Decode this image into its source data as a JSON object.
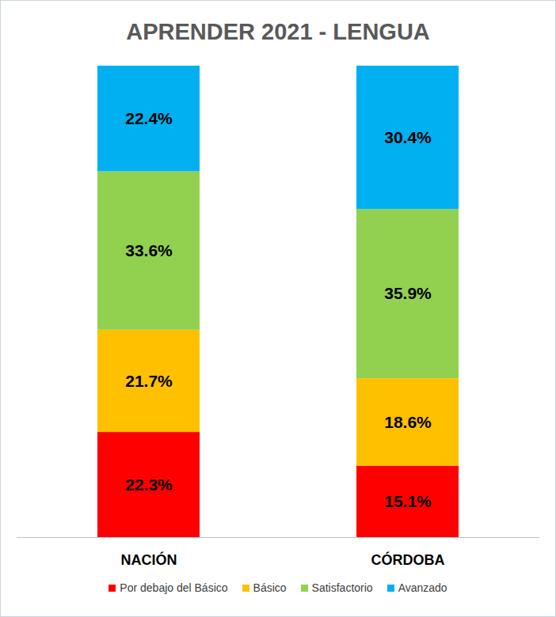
{
  "chart_data": {
    "type": "bar",
    "title": "APRENDER 2021 - LENGUA",
    "categories": [
      "NACIÓN",
      "CÓRDOBA"
    ],
    "stacked": true,
    "data_labels": true,
    "tick_labels": "x",
    "legend": "bottom",
    "ylim": [
      0,
      100
    ],
    "series": [
      {
        "name": "Por debajo del Básico",
        "color": "#ff0000",
        "values": [
          22.3,
          15.1
        ],
        "value_labels": [
          "22.3%",
          "15.1%"
        ]
      },
      {
        "name": "Básico",
        "color": "#ffc000",
        "values": [
          21.7,
          18.6
        ],
        "value_labels": [
          "21.7%",
          "18.6%"
        ]
      },
      {
        "name": "Satisfactorio",
        "color": "#92d050",
        "values": [
          33.6,
          35.9
        ],
        "value_labels": [
          "33.6%",
          "35.9%"
        ]
      },
      {
        "name": "Avanzado",
        "color": "#00b0f0",
        "values": [
          22.4,
          30.4
        ],
        "value_labels": [
          "22.4%",
          "30.4%"
        ]
      }
    ]
  }
}
